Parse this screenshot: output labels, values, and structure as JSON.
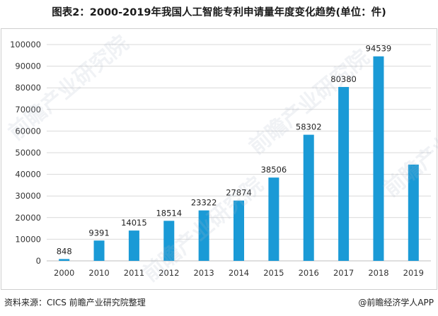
{
  "header": {
    "title": "图表2：2000-2019年我国人工智能专利申请量年度变化趋势(单位：件)"
  },
  "footer": {
    "source": "资料来源：CICS 前瞻产业研究院整理",
    "brand": "@前瞻经济学人APP"
  },
  "watermark": {
    "text": "前瞻产业研究院"
  },
  "colors": {
    "bar": "#1a9ad6",
    "grid": "#d9d9d9",
    "axis_text": "#333333"
  },
  "chart_data": {
    "type": "bar",
    "categories": [
      "2000",
      "2010",
      "2011",
      "2012",
      "2013",
      "2014",
      "2015",
      "2016",
      "2017",
      "2018",
      "2019"
    ],
    "values": [
      848,
      9391,
      14015,
      18514,
      23322,
      27874,
      38506,
      58302,
      80380,
      94539,
      44500
    ],
    "data_labels": [
      "848",
      "9391",
      "14015",
      "18514",
      "23322",
      "27874",
      "38506",
      "58302",
      "80380",
      "94539",
      ""
    ],
    "yticks": [
      "0",
      "10000",
      "20000",
      "30000",
      "40000",
      "50000",
      "60000",
      "70000",
      "80000",
      "90000",
      "100000"
    ],
    "ylim": [
      0,
      100000
    ],
    "grid": true,
    "legend": "none"
  }
}
